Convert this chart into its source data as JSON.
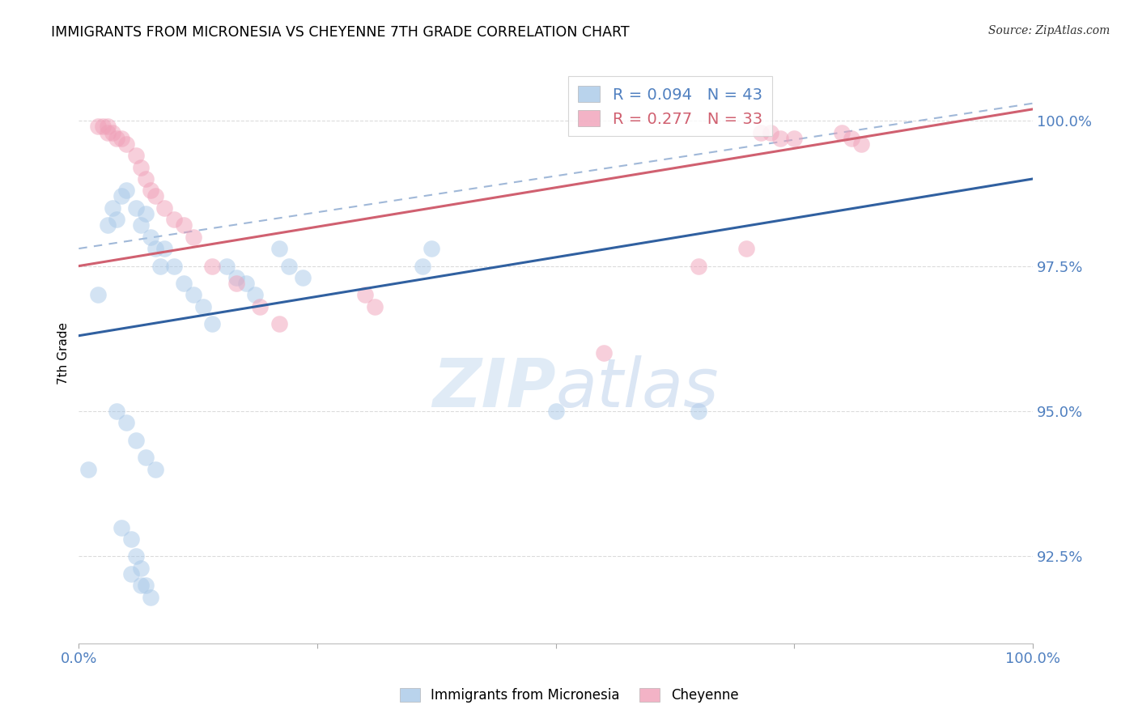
{
  "title": "IMMIGRANTS FROM MICRONESIA VS CHEYENNE 7TH GRADE CORRELATION CHART",
  "source": "Source: ZipAtlas.com",
  "ylabel": "7th Grade",
  "legend_label1": "Immigrants from Micronesia",
  "legend_label2": "Cheyenne",
  "r1": 0.094,
  "n1": 43,
  "r2": 0.277,
  "n2": 33,
  "color_blue": "#A8C8E8",
  "color_pink": "#F0A0B8",
  "color_line_blue": "#3060A0",
  "color_line_pink": "#D06070",
  "color_dashed": "#A0B8D8",
  "color_tick": "#5080C0",
  "xlim": [
    0.0,
    1.0
  ],
  "ylim": [
    0.91,
    1.01
  ],
  "yticks": [
    0.925,
    0.95,
    0.975,
    1.0
  ],
  "ytick_labels": [
    "92.5%",
    "95.0%",
    "97.5%",
    "100.0%"
  ],
  "xticks": [
    0.0,
    0.25,
    0.5,
    0.75,
    1.0
  ],
  "xtick_labels": [
    "0.0%",
    "",
    "",
    "",
    "100.0%"
  ],
  "blue_x": [
    0.01,
    0.02,
    0.03,
    0.035,
    0.04,
    0.045,
    0.05,
    0.06,
    0.065,
    0.07,
    0.075,
    0.08,
    0.085,
    0.09,
    0.1,
    0.11,
    0.12,
    0.13,
    0.14,
    0.155,
    0.165,
    0.175,
    0.185,
    0.21,
    0.22,
    0.235,
    0.36,
    0.37,
    0.04,
    0.05,
    0.06,
    0.07,
    0.08,
    0.5,
    0.65,
    0.055,
    0.065,
    0.075,
    0.045,
    0.055,
    0.06,
    0.065,
    0.07
  ],
  "blue_y": [
    0.94,
    0.97,
    0.982,
    0.985,
    0.983,
    0.987,
    0.988,
    0.985,
    0.982,
    0.984,
    0.98,
    0.978,
    0.975,
    0.978,
    0.975,
    0.972,
    0.97,
    0.968,
    0.965,
    0.975,
    0.973,
    0.972,
    0.97,
    0.978,
    0.975,
    0.973,
    0.975,
    0.978,
    0.95,
    0.948,
    0.945,
    0.942,
    0.94,
    0.95,
    0.95,
    0.922,
    0.92,
    0.918,
    0.93,
    0.928,
    0.925,
    0.923,
    0.92
  ],
  "pink_x": [
    0.02,
    0.03,
    0.04,
    0.05,
    0.06,
    0.065,
    0.07,
    0.075,
    0.08,
    0.09,
    0.1,
    0.11,
    0.12,
    0.14,
    0.165,
    0.19,
    0.21,
    0.025,
    0.035,
    0.045,
    0.55,
    0.65,
    0.7,
    0.715,
    0.725,
    0.735,
    0.75,
    0.8,
    0.81,
    0.82,
    0.3,
    0.31,
    0.03
  ],
  "pink_y": [
    0.999,
    0.998,
    0.997,
    0.996,
    0.994,
    0.992,
    0.99,
    0.988,
    0.987,
    0.985,
    0.983,
    0.982,
    0.98,
    0.975,
    0.972,
    0.968,
    0.965,
    0.999,
    0.998,
    0.997,
    0.96,
    0.975,
    0.978,
    0.998,
    0.998,
    0.997,
    0.997,
    0.998,
    0.997,
    0.996,
    0.97,
    0.968,
    0.999
  ],
  "blue_line_x0": 0.0,
  "blue_line_x1": 1.0,
  "blue_line_y0": 0.963,
  "blue_line_y1": 0.99,
  "pink_line_x0": 0.0,
  "pink_line_x1": 1.0,
  "pink_line_y0": 0.975,
  "pink_line_y1": 1.002,
  "dashed_line_x0": 0.0,
  "dashed_line_x1": 1.0,
  "dashed_line_y0": 0.978,
  "dashed_line_y1": 1.003,
  "watermark_zip": "ZIP",
  "watermark_atlas": "atlas",
  "background_color": "#FFFFFF",
  "grid_color": "#CCCCCC"
}
